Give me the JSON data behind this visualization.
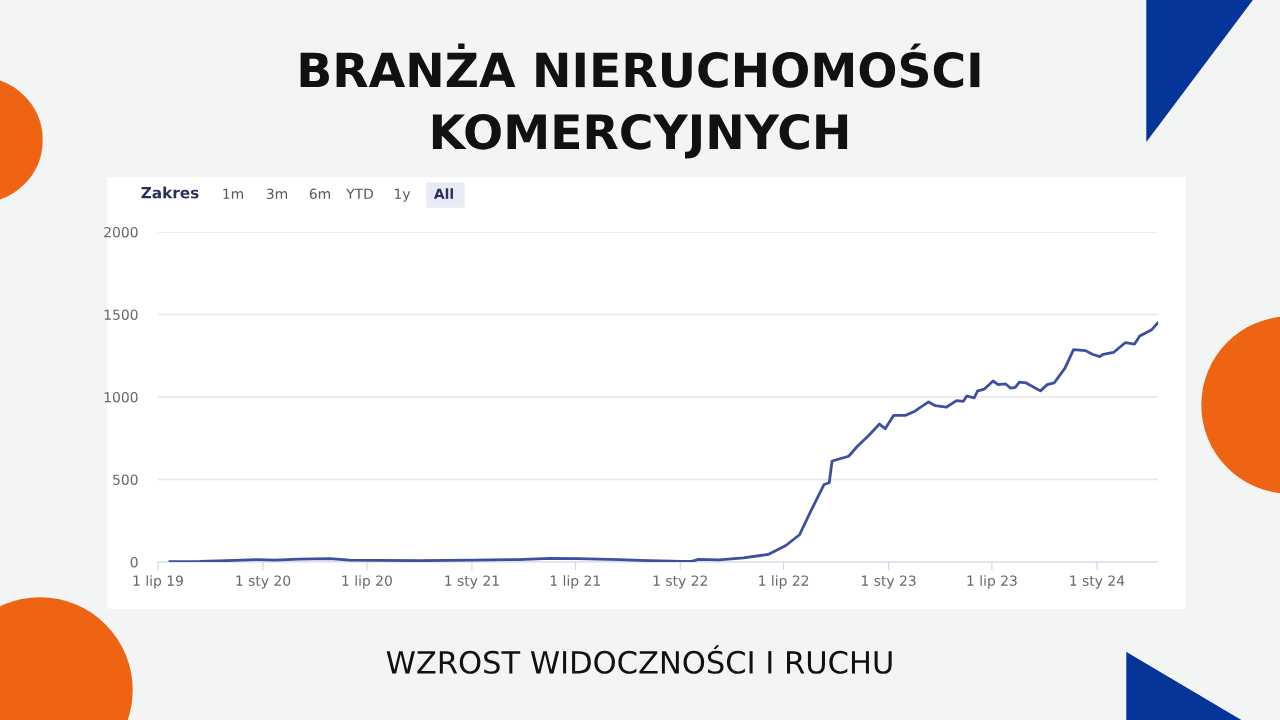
{
  "chart_data": {
    "type": "line",
    "title": "BRANŻA NIERUCHOMOŚCI\nKOMERCYJNYCH",
    "annotations": [
      "Zakres",
      "1m",
      "3m",
      "6m",
      "YTD",
      "1y",
      "All",
      "WZROST WIDOCZNOŚCI I RUCHU"
    ],
    "x": [
      "2019-07-22",
      "2019-09-12",
      "2019-11-13",
      "2019-12-23",
      "2020-01-22",
      "2020-03-05",
      "2020-04-27",
      "2020-06-01",
      "2020-07-23",
      "2020-10-01",
      "2021-01-02",
      "2021-03-25",
      "2021-05-17",
      "2021-07-05",
      "2021-09-16",
      "2021-10-21",
      "2022-01-04",
      "2022-01-21",
      "2022-02-02",
      "2022-03-10",
      "2022-04-22",
      "2022-06-04",
      "2022-07-05",
      "2022-07-29",
      "2022-08-16",
      "2022-09-10",
      "2022-09-19",
      "2022-09-24",
      "2022-10-23",
      "2022-11-07",
      "2022-11-28",
      "2022-12-16",
      "2022-12-26",
      "2023-01-10",
      "2023-01-31",
      "2023-02-16",
      "2023-03-12",
      "2023-03-24",
      "2023-04-12",
      "2023-04-30",
      "2023-05-12",
      "2023-05-18",
      "2023-05-31",
      "2023-06-06",
      "2023-06-18",
      "2023-07-03",
      "2023-07-12",
      "2023-07-25",
      "2023-08-03",
      "2023-08-11",
      "2023-08-18",
      "2023-08-30",
      "2023-09-24",
      "2023-10-06",
      "2023-10-18",
      "2023-11-06",
      "2023-11-21",
      "2023-12-12",
      "2023-12-24",
      "2024-01-06",
      "2024-01-12",
      "2024-01-30",
      "2024-02-20",
      "2024-03-07",
      "2024-03-16",
      "2024-04-06",
      "2024-04-17"
    ],
    "series": [
      {
        "color": "#3d4fa0",
        "values": [
          2,
          3,
          10,
          15,
          12,
          18,
          20,
          12,
          10,
          8,
          12,
          15,
          22,
          20,
          15,
          10,
          3,
          4,
          16,
          13,
          25,
          46,
          100,
          165,
          296,
          470,
          480,
          612,
          641,
          700,
          770,
          836,
          808,
          889,
          889,
          914,
          970,
          947,
          938,
          978,
          974,
          1006,
          995,
          1037,
          1048,
          1097,
          1075,
          1079,
          1054,
          1058,
          1090,
          1085,
          1037,
          1075,
          1085,
          1175,
          1287,
          1281,
          1259,
          1245,
          1259,
          1270,
          1330,
          1321,
          1370,
          1408,
          1450
        ]
      }
    ],
    "xlim": [
      "2019-07-01",
      "2024-04-17"
    ],
    "xticks": [
      {
        "value": "2019-07-01",
        "label": "1 lip 19"
      },
      {
        "value": "2020-01-01",
        "label": "1 sty 20"
      },
      {
        "value": "2020-07-01",
        "label": "1 lip 20"
      },
      {
        "value": "2021-01-01",
        "label": "1 sty 21"
      },
      {
        "value": "2021-07-01",
        "label": "1 lip 21"
      },
      {
        "value": "2022-01-01",
        "label": "1 sty 22"
      },
      {
        "value": "2022-07-01",
        "label": "1 lip 22"
      },
      {
        "value": "2023-01-01",
        "label": "1 sty 23"
      },
      {
        "value": "2023-07-01",
        "label": "1 lip 23"
      },
      {
        "value": "2024-01-01",
        "label": "1 sty 24"
      }
    ],
    "ylim": [
      0,
      2000
    ],
    "yticks": [
      0,
      500,
      1000,
      1500,
      2000
    ],
    "grid": "y",
    "line_style": "solid"
  }
}
